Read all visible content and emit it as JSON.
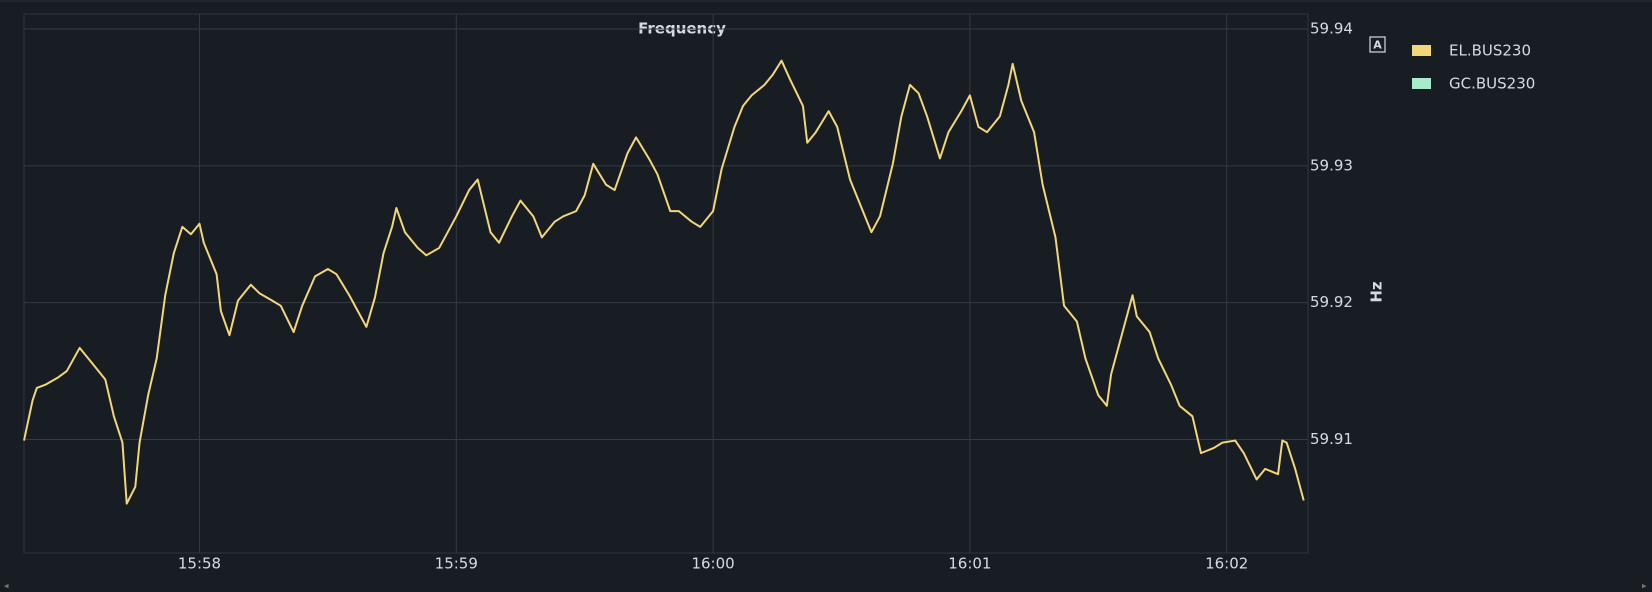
{
  "chart_data": {
    "type": "line",
    "title": "Frequency",
    "y_label": "Hz",
    "icon_label": "A",
    "x": [
      "15:57:19",
      "15:57:21",
      "15:57:22",
      "15:57:24",
      "15:57:27",
      "15:57:29",
      "15:57:32",
      "15:57:35",
      "15:57:38",
      "15:57:40",
      "15:57:42",
      "15:57:43",
      "15:57:45",
      "15:57:46",
      "15:57:48",
      "15:57:50",
      "15:57:52",
      "15:57:54",
      "15:57:56",
      "15:57:58",
      "15:58:00",
      "15:58:01",
      "15:58:04",
      "15:58:05",
      "15:58:07",
      "15:58:09",
      "15:58:12",
      "15:58:14",
      "15:58:17",
      "15:58:19",
      "15:58:22",
      "15:58:24",
      "15:58:27",
      "15:58:30",
      "15:58:32",
      "15:58:35",
      "15:58:37",
      "15:58:39",
      "15:58:41",
      "15:58:43",
      "15:58:45",
      "15:58:46",
      "15:58:48",
      "15:58:51",
      "15:58:53",
      "15:58:56",
      "15:58:58",
      "15:59:00",
      "15:59:03",
      "15:59:05",
      "15:59:08",
      "15:59:10",
      "15:59:13",
      "15:59:15",
      "15:59:18",
      "15:59:20",
      "15:59:23",
      "15:59:25",
      "15:59:28",
      "15:59:30",
      "15:59:32",
      "15:59:35",
      "15:59:37",
      "15:59:40",
      "15:59:42",
      "15:59:45",
      "15:59:47",
      "15:59:50",
      "15:59:52",
      "15:59:55",
      "15:59:57",
      "16:00:00",
      "16:00:02",
      "16:00:05",
      "16:00:07",
      "16:00:09",
      "16:00:12",
      "16:00:14",
      "16:00:16",
      "16:00:18",
      "16:00:21",
      "16:00:22",
      "16:00:24",
      "16:00:27",
      "16:00:29",
      "16:00:32",
      "16:00:34",
      "16:00:37",
      "16:00:39",
      "16:00:42",
      "16:00:44",
      "16:00:46",
      "16:00:48",
      "16:00:50",
      "16:00:53",
      "16:00:55",
      "16:00:58",
      "16:01:00",
      "16:01:02",
      "16:01:04",
      "16:01:07",
      "16:01:09",
      "16:01:10",
      "16:01:12",
      "16:01:15",
      "16:01:17",
      "16:01:20",
      "16:01:22",
      "16:01:25",
      "16:01:27",
      "16:01:30",
      "16:01:32",
      "16:01:33",
      "16:01:35",
      "16:01:38",
      "16:01:39",
      "16:01:42",
      "16:01:44",
      "16:01:47",
      "16:01:49",
      "16:01:52",
      "16:01:54",
      "16:01:57",
      "16:01:59",
      "16:02:02",
      "16:02:04",
      "16:02:07",
      "16:02:09",
      "16:02:12",
      "16:02:13",
      "16:02:14",
      "16:02:16",
      "16:02:18"
    ],
    "series": [
      {
        "name": "EL.BUS230",
        "color": "#f2d677",
        "values": [
          59.90992,
          59.91285,
          59.91377,
          59.914,
          59.91454,
          59.915,
          59.91669,
          59.91554,
          59.91438,
          59.91169,
          59.90977,
          59.90531,
          59.90654,
          59.90977,
          59.91323,
          59.91592,
          59.92054,
          59.92362,
          59.92554,
          59.925,
          59.92577,
          59.92438,
          59.92208,
          59.91938,
          59.91762,
          59.92015,
          59.92131,
          59.92069,
          59.92015,
          59.91977,
          59.91785,
          59.91977,
          59.92192,
          59.92246,
          59.92208,
          59.92054,
          59.91938,
          59.91823,
          59.92038,
          59.92362,
          59.92554,
          59.92692,
          59.92515,
          59.924,
          59.92346,
          59.924,
          59.92515,
          59.92631,
          59.92823,
          59.929,
          59.92515,
          59.92438,
          59.92631,
          59.92746,
          59.92631,
          59.92477,
          59.92592,
          59.92631,
          59.92669,
          59.92785,
          59.93015,
          59.92862,
          59.92823,
          59.93092,
          59.93208,
          59.93054,
          59.92938,
          59.92669,
          59.92669,
          59.92592,
          59.92554,
          59.92669,
          59.92977,
          59.93285,
          59.93438,
          59.93515,
          59.93592,
          59.93669,
          59.93769,
          59.93631,
          59.93438,
          59.93169,
          59.93246,
          59.934,
          59.93285,
          59.929,
          59.92746,
          59.92515,
          59.92631,
          59.93015,
          59.93362,
          59.93592,
          59.93531,
          59.93362,
          59.93054,
          59.93246,
          59.934,
          59.93515,
          59.93285,
          59.93246,
          59.93362,
          59.93592,
          59.93746,
          59.93477,
          59.93246,
          59.92862,
          59.92477,
          59.91977,
          59.91862,
          59.91592,
          59.91323,
          59.91246,
          59.91477,
          59.91708,
          59.92054,
          59.919,
          59.91785,
          59.91592,
          59.914,
          59.91246,
          59.91169,
          59.909,
          59.90938,
          59.90977,
          59.90992,
          59.909,
          59.90708,
          59.90785,
          59.90746,
          59.90992,
          59.90977,
          59.90785,
          59.90554
        ]
      },
      {
        "name": "GC.BUS230",
        "color": "#a6ecc8",
        "values": [
          null,
          null,
          null,
          null,
          null,
          null,
          null,
          null,
          null,
          null,
          null,
          null,
          null,
          null,
          null,
          null,
          null,
          null,
          null,
          null,
          null,
          null,
          null,
          null,
          null,
          null,
          null,
          null,
          null,
          null,
          null,
          null,
          null,
          null,
          null,
          null,
          null,
          null,
          null,
          null,
          null,
          null,
          null,
          null,
          null,
          null,
          null,
          null,
          null,
          null,
          null,
          null,
          null,
          null,
          null,
          null,
          null,
          null,
          null,
          null,
          null,
          null,
          null,
          null,
          null,
          null,
          null,
          null,
          null,
          null,
          null,
          null,
          null,
          null,
          null,
          null,
          null,
          null,
          null,
          null,
          null,
          null,
          null,
          null,
          null,
          null,
          null,
          null,
          null,
          null,
          null,
          null,
          null,
          null,
          null,
          null,
          null,
          null,
          null,
          null,
          null,
          null,
          null,
          null,
          null,
          null,
          null,
          null,
          null,
          null,
          null,
          null,
          null,
          null,
          null,
          null,
          null,
          null,
          null,
          null,
          null,
          null,
          null,
          null,
          null,
          null,
          null,
          null,
          null,
          null,
          null,
          null,
          null
        ]
      }
    ],
    "xlim": [
      "15:57:19",
      "16:02:19"
    ],
    "xticks": [
      "15:58",
      "15:59",
      "16:00",
      "16:01",
      "16:02"
    ],
    "ylim": [
      59.9017,
      59.9411
    ],
    "yticks": [
      59.91,
      59.92,
      59.93,
      59.94
    ],
    "grid": true
  }
}
